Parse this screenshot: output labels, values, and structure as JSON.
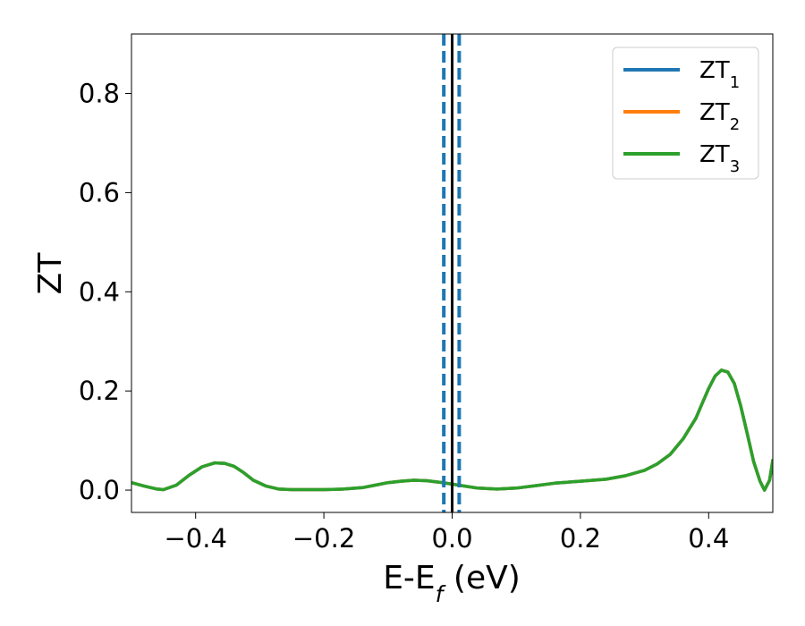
{
  "chart_data": {
    "type": "line",
    "title": "",
    "xlabel": "E-E",
    "xlabel_sub": "f",
    "xlabel_unit": " (eV)",
    "ylabel": "ZT",
    "xlim": [
      -0.5,
      0.5
    ],
    "ylim": [
      -0.045,
      0.92
    ],
    "grid": false,
    "legend_placement": "top-right",
    "xticks": [
      -0.4,
      -0.2,
      0.0,
      0.2,
      0.4
    ],
    "xtick_labels": [
      "−0.4",
      "−0.2",
      "0.0",
      "0.2",
      "0.4"
    ],
    "yticks": [
      0.0,
      0.2,
      0.4,
      0.6,
      0.8
    ],
    "ytick_labels": [
      "0.0",
      "0.2",
      "0.4",
      "0.6",
      "0.8"
    ],
    "vlines": [
      {
        "x": -0.013,
        "style": "dashed",
        "color": "#1f77b4"
      },
      {
        "x": 0.0,
        "style": "solid",
        "color": "#000000"
      },
      {
        "x": 0.011,
        "style": "dashed",
        "color": "#1f77b4"
      }
    ],
    "series": [
      {
        "legend_base": "ZT",
        "legend_sub": "1",
        "color": "#1f77b4",
        "x": [
          -0.5,
          -0.48,
          -0.46,
          -0.45,
          -0.43,
          -0.41,
          -0.39,
          -0.37,
          -0.355,
          -0.34,
          -0.325,
          -0.31,
          -0.29,
          -0.27,
          -0.25,
          -0.23,
          -0.2,
          -0.17,
          -0.14,
          -0.12,
          -0.1,
          -0.08,
          -0.06,
          -0.04,
          -0.02,
          0.0,
          0.02,
          0.04,
          0.07,
          0.1,
          0.13,
          0.16,
          0.2,
          0.24,
          0.27,
          0.3,
          0.32,
          0.34,
          0.36,
          0.38,
          0.39,
          0.4,
          0.41,
          0.42,
          0.43,
          0.44,
          0.45,
          0.46,
          0.47,
          0.48,
          0.487,
          0.495,
          0.5
        ],
        "y": [
          0.015,
          0.008,
          0.002,
          0.001,
          0.01,
          0.03,
          0.047,
          0.055,
          0.054,
          0.048,
          0.035,
          0.02,
          0.008,
          0.002,
          0.001,
          0.001,
          0.001,
          0.002,
          0.005,
          0.01,
          0.015,
          0.018,
          0.02,
          0.019,
          0.016,
          0.012,
          0.008,
          0.004,
          0.002,
          0.004,
          0.009,
          0.014,
          0.018,
          0.022,
          0.029,
          0.04,
          0.053,
          0.072,
          0.103,
          0.145,
          0.175,
          0.205,
          0.23,
          0.242,
          0.238,
          0.215,
          0.17,
          0.115,
          0.058,
          0.018,
          0.0,
          0.02,
          0.06
        ]
      },
      {
        "legend_base": "ZT",
        "legend_sub": "2",
        "color": "#ff7f0e",
        "x": [
          -0.5,
          -0.48,
          -0.46,
          -0.45,
          -0.43,
          -0.41,
          -0.39,
          -0.37,
          -0.355,
          -0.34,
          -0.325,
          -0.31,
          -0.29,
          -0.27,
          -0.25,
          -0.23,
          -0.2,
          -0.17,
          -0.14,
          -0.12,
          -0.1,
          -0.08,
          -0.06,
          -0.04,
          -0.02,
          0.0,
          0.02,
          0.04,
          0.07,
          0.1,
          0.13,
          0.16,
          0.2,
          0.24,
          0.27,
          0.3,
          0.32,
          0.34,
          0.36,
          0.38,
          0.39,
          0.4,
          0.41,
          0.42,
          0.43,
          0.44,
          0.45,
          0.46,
          0.47,
          0.48,
          0.487,
          0.495,
          0.5
        ],
        "y": [
          0.015,
          0.008,
          0.002,
          0.001,
          0.01,
          0.03,
          0.047,
          0.055,
          0.054,
          0.048,
          0.035,
          0.02,
          0.008,
          0.002,
          0.001,
          0.001,
          0.001,
          0.002,
          0.005,
          0.01,
          0.015,
          0.018,
          0.02,
          0.019,
          0.016,
          0.012,
          0.008,
          0.004,
          0.002,
          0.004,
          0.009,
          0.014,
          0.018,
          0.022,
          0.029,
          0.04,
          0.053,
          0.072,
          0.103,
          0.145,
          0.175,
          0.205,
          0.23,
          0.242,
          0.238,
          0.215,
          0.17,
          0.115,
          0.058,
          0.018,
          0.0,
          0.02,
          0.06
        ]
      },
      {
        "legend_base": "ZT",
        "legend_sub": "3",
        "color": "#2ca02c",
        "x": [
          -0.5,
          -0.48,
          -0.46,
          -0.45,
          -0.43,
          -0.41,
          -0.39,
          -0.37,
          -0.355,
          -0.34,
          -0.325,
          -0.31,
          -0.29,
          -0.27,
          -0.25,
          -0.23,
          -0.2,
          -0.17,
          -0.14,
          -0.12,
          -0.1,
          -0.08,
          -0.06,
          -0.04,
          -0.02,
          0.0,
          0.02,
          0.04,
          0.07,
          0.1,
          0.13,
          0.16,
          0.2,
          0.24,
          0.27,
          0.3,
          0.32,
          0.34,
          0.36,
          0.38,
          0.39,
          0.4,
          0.41,
          0.42,
          0.43,
          0.44,
          0.45,
          0.46,
          0.47,
          0.48,
          0.487,
          0.495,
          0.5
        ],
        "y": [
          0.015,
          0.008,
          0.002,
          0.001,
          0.01,
          0.03,
          0.047,
          0.055,
          0.054,
          0.048,
          0.035,
          0.02,
          0.008,
          0.002,
          0.001,
          0.001,
          0.001,
          0.002,
          0.005,
          0.01,
          0.015,
          0.018,
          0.02,
          0.019,
          0.016,
          0.012,
          0.008,
          0.004,
          0.002,
          0.004,
          0.009,
          0.014,
          0.018,
          0.022,
          0.029,
          0.04,
          0.053,
          0.072,
          0.103,
          0.145,
          0.175,
          0.205,
          0.23,
          0.242,
          0.238,
          0.215,
          0.17,
          0.115,
          0.058,
          0.018,
          0.0,
          0.02,
          0.06
        ]
      }
    ]
  }
}
